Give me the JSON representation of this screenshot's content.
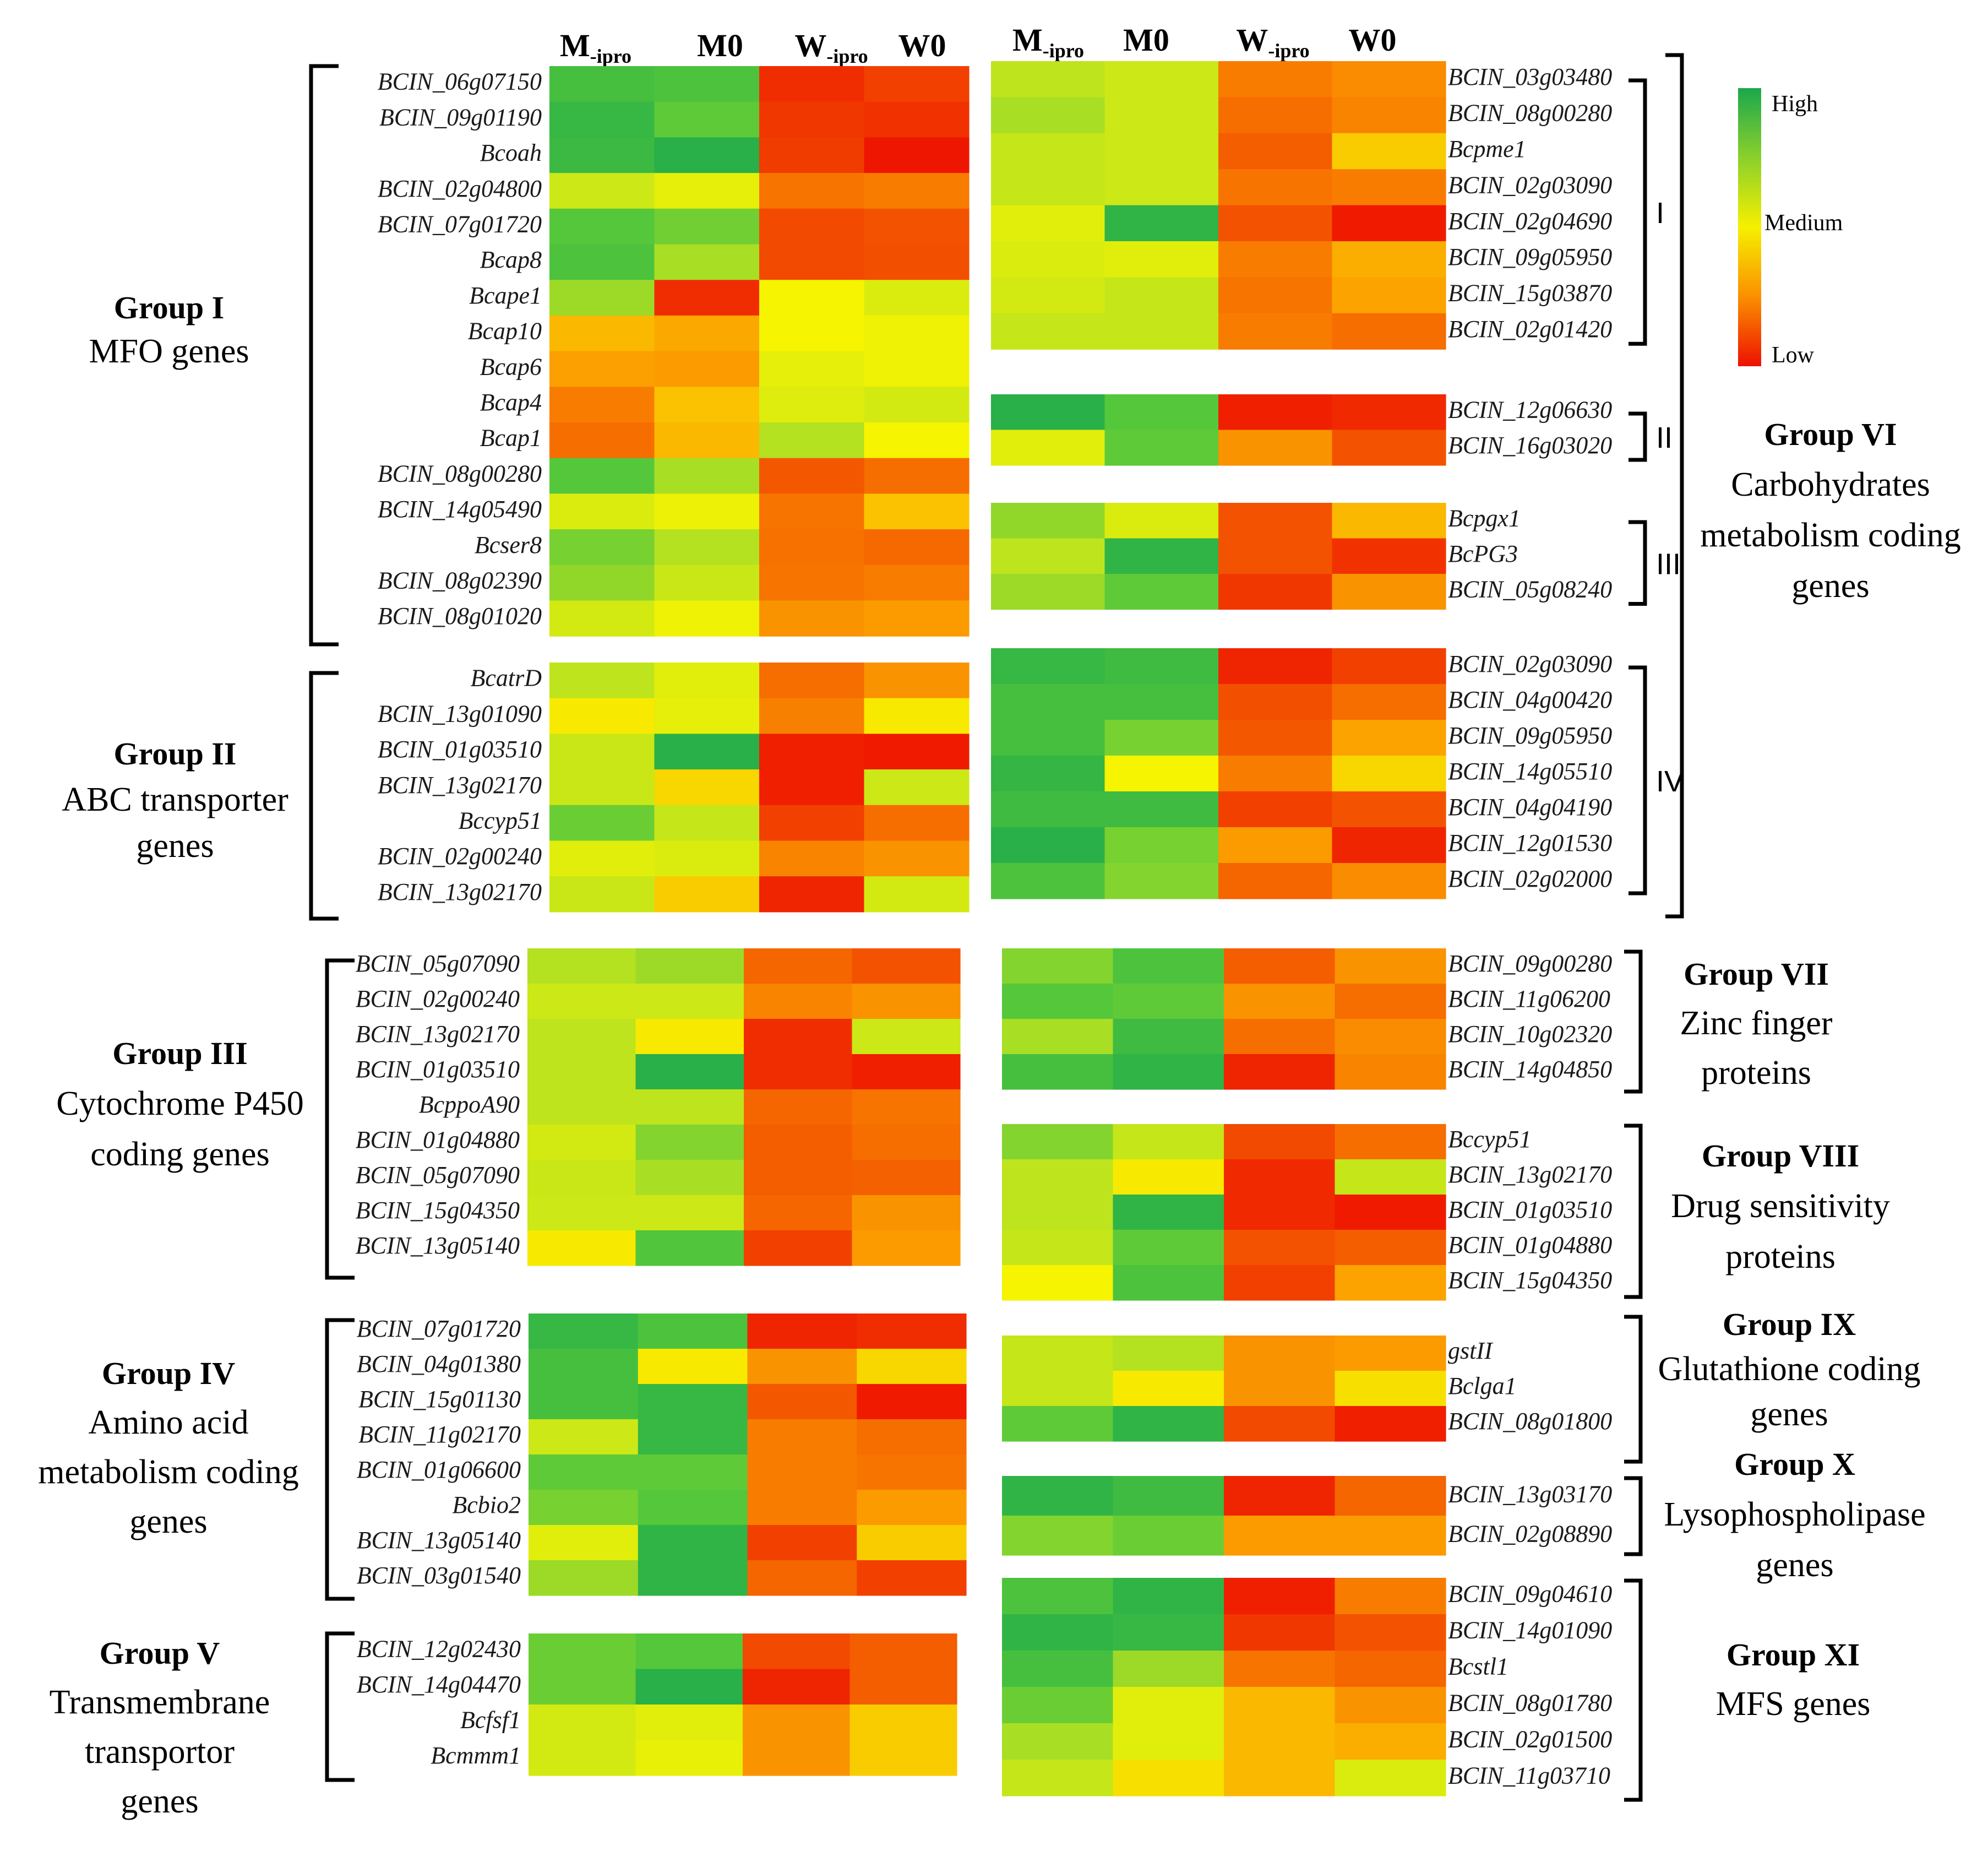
{
  "chart_data": {
    "type": "heatmap",
    "columns": [
      "M-ipro",
      "M0",
      "W-ipro",
      "W0"
    ],
    "column_headers": [
      {
        "main": "M",
        "sub": "-ipro"
      },
      {
        "main": "M0",
        "sub": ""
      },
      {
        "main": "W",
        "sub": "-ipro"
      },
      {
        "main": "W0",
        "sub": ""
      }
    ],
    "color_scale": {
      "high": "#1aaa4a",
      "medium": "#f2f200",
      "low": "#ee0000",
      "stops": [
        "#ee1100",
        "#f46000",
        "#fca000",
        "#f6f400",
        "#bce31e",
        "#57c83a",
        "#1aa84c"
      ],
      "labels": {
        "high": "High",
        "medium": "Medium",
        "low": "Low"
      }
    },
    "value_note": "relative expression level, 0 = Low, 1 = High",
    "groups": [
      {
        "id": "I",
        "title": "Group I",
        "description": [
          "MFO genes"
        ],
        "genes": [
          "BCIN_06g07150",
          "BCIN_09g01190",
          "Bcoah",
          "BCIN_02g04800",
          "BCIN_07g01720",
          "Bcap8",
          "Bcape1",
          "Bcap10",
          "Bcap6",
          "Bcap4",
          "Bcap1",
          "BCIN_08g00280",
          "BCIN_14g05490",
          "Bcser8",
          "BCIN_08g02390",
          "BCIN_08g01020"
        ],
        "values": [
          [
            0.88,
            0.86,
            0.06,
            0.1
          ],
          [
            0.92,
            0.82,
            0.08,
            0.07
          ],
          [
            0.91,
            0.96,
            0.09,
            0.01
          ],
          [
            0.62,
            0.55,
            0.22,
            0.24
          ],
          [
            0.84,
            0.79,
            0.12,
            0.14
          ],
          [
            0.86,
            0.7,
            0.12,
            0.13
          ],
          [
            0.72,
            0.06,
            0.5,
            0.58
          ],
          [
            0.38,
            0.35,
            0.5,
            0.52
          ],
          [
            0.33,
            0.32,
            0.55,
            0.52
          ],
          [
            0.24,
            0.4,
            0.57,
            0.6
          ],
          [
            0.2,
            0.38,
            0.68,
            0.5
          ],
          [
            0.84,
            0.7,
            0.15,
            0.2
          ],
          [
            0.58,
            0.53,
            0.22,
            0.4
          ],
          [
            0.78,
            0.68,
            0.21,
            0.19
          ],
          [
            0.74,
            0.63,
            0.22,
            0.24
          ],
          [
            0.6,
            0.52,
            0.3,
            0.32
          ]
        ]
      },
      {
        "id": "II",
        "title": "Group II",
        "description": [
          "ABC transporter",
          "genes"
        ],
        "genes": [
          "BcatrD",
          "BCIN_13g01090",
          "BCIN_01g03510",
          "BCIN_13g02170",
          "Bccyp51",
          "BCIN_02g00240",
          "BCIN_13g02170"
        ],
        "values": [
          [
            0.66,
            0.56,
            0.2,
            0.3
          ],
          [
            0.48,
            0.55,
            0.25,
            0.48
          ],
          [
            0.63,
            0.96,
            0.03,
            0.02
          ],
          [
            0.63,
            0.44,
            0.03,
            0.62
          ],
          [
            0.8,
            0.64,
            0.1,
            0.2
          ],
          [
            0.56,
            0.58,
            0.26,
            0.3
          ],
          [
            0.63,
            0.42,
            0.04,
            0.6
          ]
        ]
      },
      {
        "id": "III",
        "title": "Group III",
        "description": [
          "Cytochrome P450",
          "coding genes"
        ],
        "genes": [
          "BCIN_05g07090",
          "BCIN_02g00240",
          "BCIN_13g02170",
          "BCIN_01g03510",
          "BcppoA90",
          "BCIN_01g04880",
          "BCIN_05g07090",
          "BCIN_15g04350",
          "BCIN_13g05140"
        ],
        "values": [
          [
            0.68,
            0.72,
            0.18,
            0.14
          ],
          [
            0.62,
            0.62,
            0.26,
            0.3
          ],
          [
            0.66,
            0.48,
            0.06,
            0.62
          ],
          [
            0.66,
            0.96,
            0.06,
            0.03
          ],
          [
            0.66,
            0.66,
            0.18,
            0.22
          ],
          [
            0.6,
            0.76,
            0.16,
            0.2
          ],
          [
            0.63,
            0.7,
            0.16,
            0.17
          ],
          [
            0.62,
            0.62,
            0.18,
            0.3
          ],
          [
            0.48,
            0.85,
            0.1,
            0.32
          ]
        ]
      },
      {
        "id": "IV",
        "title": "Group IV",
        "description": [
          "Amino acid",
          "metabolism coding",
          "genes"
        ],
        "genes": [
          "BCIN_07g01720",
          "BCIN_04g01380",
          "BCIN_15g01130",
          "BCIN_11g02170",
          "BCIN_01g06600",
          "Bcbio2",
          "BCIN_13g05140",
          "BCIN_03g01540"
        ],
        "values": [
          [
            0.92,
            0.86,
            0.04,
            0.06
          ],
          [
            0.88,
            0.48,
            0.3,
            0.44
          ],
          [
            0.88,
            0.92,
            0.15,
            0.02
          ],
          [
            0.62,
            0.92,
            0.24,
            0.2
          ],
          [
            0.82,
            0.82,
            0.24,
            0.22
          ],
          [
            0.78,
            0.84,
            0.24,
            0.32
          ],
          [
            0.56,
            0.94,
            0.1,
            0.42
          ],
          [
            0.72,
            0.94,
            0.18,
            0.1
          ]
        ]
      },
      {
        "id": "V",
        "title": "Group V",
        "description": [
          "Transmembrane",
          "transportor",
          "genes"
        ],
        "genes": [
          "BCIN_12g02430",
          "BCIN_14g04470",
          "Bcfsf1",
          "Bcmmm1"
        ],
        "values": [
          [
            0.8,
            0.84,
            0.12,
            0.16
          ],
          [
            0.8,
            0.96,
            0.04,
            0.16
          ],
          [
            0.6,
            0.56,
            0.3,
            0.42
          ],
          [
            0.6,
            0.54,
            0.3,
            0.42
          ]
        ]
      },
      {
        "id": "VI",
        "title": "Group VI",
        "description": [
          "Carbohydrates",
          "metabolism coding",
          "genes"
        ],
        "genes": [
          "BCIN_03g03480",
          "BCIN_08g00280",
          "Bcpme1",
          "BCIN_02g03090",
          "BCIN_02g04690",
          "BCIN_09g05950",
          "BCIN_15g03870",
          "BCIN_02g01420",
          "BCIN_12g06630",
          "BCIN_16g03020",
          "Bcpgx1",
          "BcPG3",
          "BCIN_05g08240",
          "BCIN_02g03090",
          "BCIN_04g00420",
          "BCIN_09g05950",
          "BCIN_14g05510",
          "BCIN_04g04190",
          "BCIN_12g01530",
          "BCIN_02g02000"
        ],
        "subgroups": [
          {
            "label": "I",
            "start": 0,
            "end": 7
          },
          {
            "label": "II",
            "start": 8,
            "end": 9
          },
          {
            "label": "III",
            "start": 10,
            "end": 12
          },
          {
            "label": "IV",
            "start": 13,
            "end": 19
          }
        ],
        "values": [
          [
            0.66,
            0.62,
            0.24,
            0.28
          ],
          [
            0.7,
            0.62,
            0.2,
            0.26
          ],
          [
            0.64,
            0.62,
            0.16,
            0.42
          ],
          [
            0.64,
            0.62,
            0.22,
            0.24
          ],
          [
            0.56,
            0.94,
            0.14,
            0.02
          ],
          [
            0.58,
            0.56,
            0.24,
            0.36
          ],
          [
            0.6,
            0.64,
            0.22,
            0.34
          ],
          [
            0.64,
            0.64,
            0.24,
            0.2
          ],
          [
            0.96,
            0.84,
            0.03,
            0.05
          ],
          [
            0.56,
            0.82,
            0.3,
            0.14
          ],
          [
            0.74,
            0.58,
            0.14,
            0.38
          ],
          [
            0.66,
            0.94,
            0.14,
            0.07
          ],
          [
            0.72,
            0.82,
            0.08,
            0.3
          ],
          [
            0.92,
            0.9,
            0.04,
            0.1
          ],
          [
            0.88,
            0.88,
            0.13,
            0.2
          ],
          [
            0.88,
            0.78,
            0.15,
            0.34
          ],
          [
            0.93,
            0.5,
            0.24,
            0.44
          ],
          [
            0.9,
            0.9,
            0.1,
            0.14
          ],
          [
            0.96,
            0.78,
            0.32,
            0.04
          ],
          [
            0.86,
            0.76,
            0.18,
            0.28
          ]
        ]
      },
      {
        "id": "VII",
        "title": "Group VII",
        "description": [
          "Zinc finger",
          "proteins"
        ],
        "genes": [
          "BCIN_09g00280",
          "BCIN_11g06200",
          "BCIN_10g02320",
          "BCIN_14g04850"
        ],
        "values": [
          [
            0.76,
            0.86,
            0.16,
            0.3
          ],
          [
            0.84,
            0.82,
            0.3,
            0.2
          ],
          [
            0.7,
            0.9,
            0.2,
            0.28
          ],
          [
            0.88,
            0.94,
            0.04,
            0.26
          ]
        ]
      },
      {
        "id": "VIII",
        "title": "Group VIII",
        "description": [
          "Drug sensitivity",
          "proteins"
        ],
        "genes": [
          "Bccyp51",
          "BCIN_13g02170",
          "BCIN_01g03510",
          "BCIN_01g04880",
          "BCIN_15g04350"
        ],
        "values": [
          [
            0.76,
            0.64,
            0.12,
            0.2
          ],
          [
            0.66,
            0.48,
            0.05,
            0.64
          ],
          [
            0.66,
            0.94,
            0.05,
            0.02
          ],
          [
            0.64,
            0.82,
            0.14,
            0.16
          ],
          [
            0.5,
            0.86,
            0.1,
            0.34
          ]
        ]
      },
      {
        "id": "IX",
        "title": "Group IX",
        "description": [
          "Glutathione coding",
          "genes"
        ],
        "genes": [
          "gstII",
          "Bclga1",
          "BCIN_08g01800"
        ],
        "values": [
          [
            0.64,
            0.68,
            0.3,
            0.32
          ],
          [
            0.64,
            0.48,
            0.3,
            0.46
          ],
          [
            0.82,
            0.94,
            0.12,
            0.03
          ]
        ]
      },
      {
        "id": "X",
        "title": "Group X",
        "description": [
          "Lysophospholipase",
          "genes"
        ],
        "genes": [
          "BCIN_13g03170",
          "BCIN_02g08890"
        ],
        "values": [
          [
            0.94,
            0.9,
            0.04,
            0.18
          ],
          [
            0.76,
            0.8,
            0.32,
            0.32
          ]
        ]
      },
      {
        "id": "XI",
        "title": "Group XI",
        "description": [
          "MFS genes"
        ],
        "genes": [
          "BCIN_09g04610",
          "BCIN_14g01090",
          "Bcstl1",
          "BCIN_08g01780",
          "BCIN_02g01500",
          "BCIN_11g03710"
        ],
        "values": [
          [
            0.86,
            0.94,
            0.03,
            0.24
          ],
          [
            0.94,
            0.92,
            0.08,
            0.14
          ],
          [
            0.88,
            0.72,
            0.22,
            0.18
          ],
          [
            0.8,
            0.56,
            0.38,
            0.3
          ],
          [
            0.7,
            0.56,
            0.38,
            0.36
          ],
          [
            0.64,
            0.46,
            0.38,
            0.58
          ]
        ]
      }
    ]
  }
}
